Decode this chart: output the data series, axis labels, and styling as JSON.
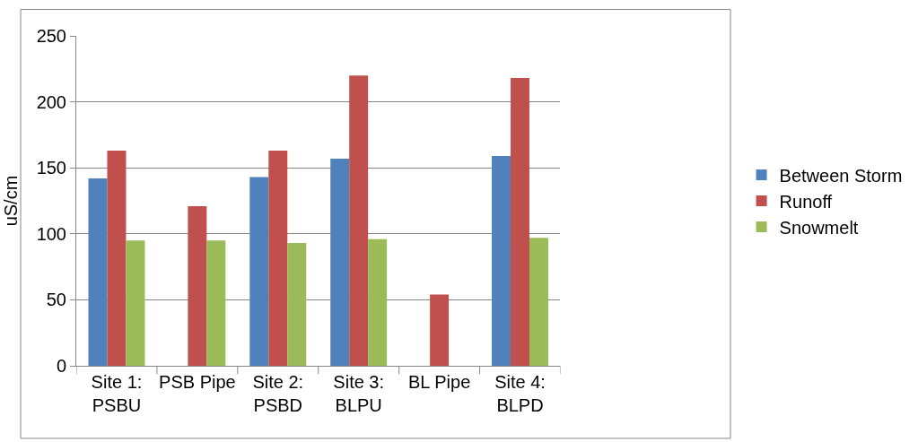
{
  "chart_data": {
    "type": "bar",
    "ylabel": "uS/cm",
    "categories": [
      "Site 1: PSBU",
      "PSB Pipe",
      "Site 2: PSBD",
      "Site 3: BLPU",
      "BL Pipe",
      "Site 4: BLPD"
    ],
    "series": [
      {
        "name": "Between Storm",
        "color": "#4f81bd",
        "values": [
          142,
          null,
          143,
          157,
          null,
          159
        ]
      },
      {
        "name": "Runoff",
        "color": "#c0504d",
        "values": [
          163,
          121,
          163,
          220,
          54,
          218
        ]
      },
      {
        "name": "Snowmelt",
        "color": "#9bbb59",
        "values": [
          95,
          95,
          93,
          96,
          null,
          97
        ]
      }
    ],
    "ylim": [
      0,
      250
    ],
    "yticks": [
      0,
      50,
      100,
      150,
      200,
      250
    ],
    "grid": "y",
    "legend": "right"
  }
}
